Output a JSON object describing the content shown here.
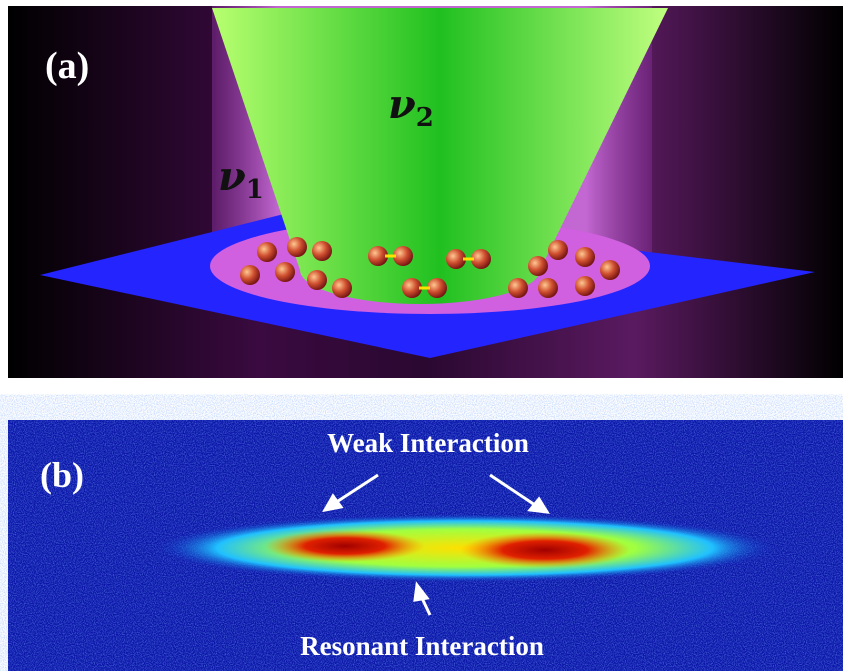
{
  "panel_a": {
    "label": "(a)",
    "beam_1": {
      "symbol": "ν",
      "subscript": "1"
    },
    "beam_2": {
      "symbol": "ν",
      "subscript": "2"
    }
  },
  "panel_b": {
    "label": "(b)",
    "annotation_top": "Weak Interaction",
    "annotation_bottom": "Resonant Interaction"
  }
}
